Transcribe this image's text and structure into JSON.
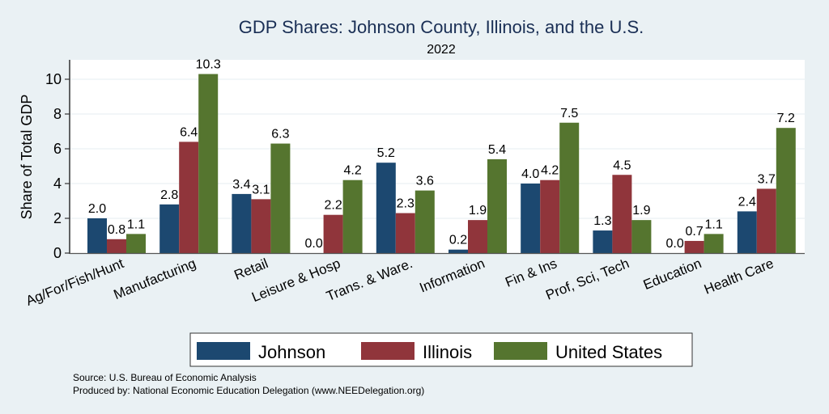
{
  "chart_data": {
    "type": "bar",
    "title": "GDP Shares: Johnson County, Illinois, and the U.S.",
    "subtitle": "2022",
    "xlabel": "",
    "ylabel": "Share of Total GDP",
    "ylim": [
      0,
      11
    ],
    "yticks": [
      0,
      2,
      4,
      6,
      8,
      10
    ],
    "grid": true,
    "legend_position": "bottom",
    "categories": [
      "Ag/For/Fish/Hunt",
      "Manufacturing",
      "Retail",
      "Leisure & Hosp",
      "Trans. & Ware.",
      "Information",
      "Fin & Ins",
      "Prof, Sci, Tech",
      "Education",
      "Health Care"
    ],
    "series": [
      {
        "name": "Johnson",
        "color": "#1c4870",
        "values": [
          2.0,
          2.8,
          3.4,
          0.0,
          5.2,
          0.2,
          4.0,
          1.3,
          0.0,
          2.4
        ]
      },
      {
        "name": "Illinois",
        "color": "#90353b",
        "values": [
          0.8,
          6.4,
          3.1,
          2.2,
          2.3,
          1.9,
          4.2,
          4.5,
          0.7,
          3.7
        ]
      },
      {
        "name": "United States",
        "color": "#55752f",
        "values": [
          1.1,
          10.3,
          6.3,
          4.2,
          3.6,
          5.4,
          7.5,
          1.9,
          1.1,
          7.2
        ]
      }
    ],
    "notes": [
      "Source: U.S. Bureau of Economic Analysis",
      "Produced by: National Economic Education Delegation (www.NEEDelegation.org)"
    ]
  }
}
